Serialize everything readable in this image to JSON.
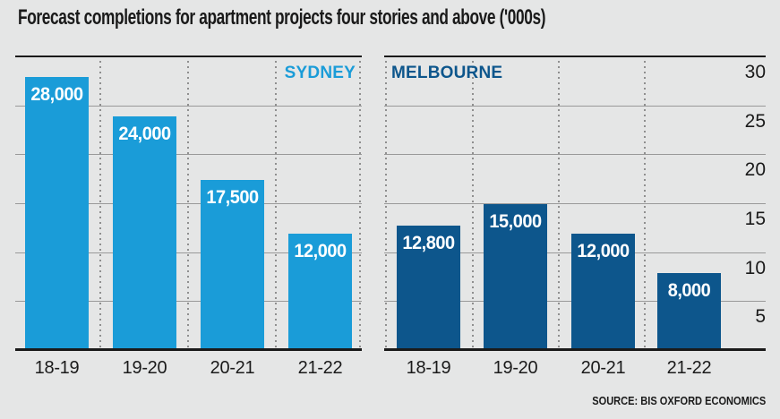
{
  "title": "Forecast completions for apartment projects four stories and above ('000s)",
  "source": "SOURCE: BIS OXFORD ECONOMICS",
  "chart_data": {
    "type": "bar",
    "title": "Forecast completions for apartment projects four stories and above ('000s)",
    "categories": [
      "18-19",
      "19-20",
      "20-21",
      "21-22"
    ],
    "series": [
      {
        "name": "SYDNEY",
        "color": "#1a9cd8",
        "values": [
          28,
          24,
          17.5,
          12
        ],
        "data_labels": [
          "28,000",
          "24,000",
          "17,500",
          "12,000"
        ]
      },
      {
        "name": "MELBOURNE",
        "color": "#0d568c",
        "values": [
          12.8,
          15,
          12,
          8
        ],
        "data_labels": [
          "12,800",
          "15,000",
          "12,000",
          "8,000"
        ]
      }
    ],
    "ylim": [
      0,
      30
    ],
    "yticks": [
      5,
      10,
      15,
      20,
      25,
      30
    ],
    "grid": true,
    "legend_position": "series name inside top of each panel"
  },
  "colors": {
    "background": "#e5e6e6",
    "gridline": "#999999",
    "dotted_line": "#8f8f8f",
    "axis_line": "#1a1a1a",
    "text": "#1a1a1a",
    "bar_label": "#ffffff",
    "sydney": "#1a9cd8",
    "melbourne": "#0d568c"
  }
}
